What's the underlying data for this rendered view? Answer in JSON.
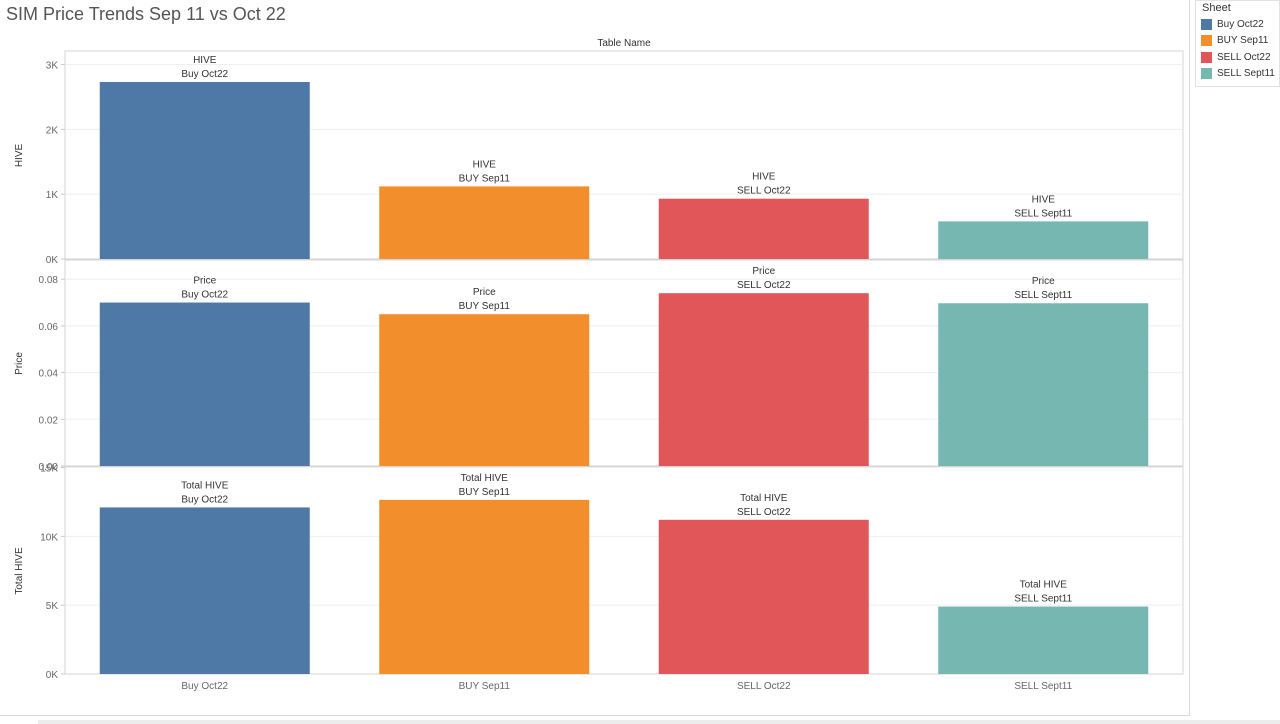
{
  "title": "SIM Price Trends Sep 11 vs Oct 22",
  "legend": {
    "title": "Sheet",
    "items": [
      {
        "label": "Buy Oct22",
        "color": "#4e79a7"
      },
      {
        "label": "BUY Sep11",
        "color": "#f28e2b"
      },
      {
        "label": "SELL Oct22",
        "color": "#e15759"
      },
      {
        "label": "SELL Sept11",
        "color": "#76b7b2"
      }
    ]
  },
  "chart_data": {
    "type": "bar",
    "header": "Table Name",
    "categories": [
      "Buy Oct22",
      "BUY Sep11",
      "SELL Oct22",
      "SELL Sept11"
    ],
    "colors": [
      "#4e79a7",
      "#f28e2b",
      "#e15759",
      "#76b7b2"
    ],
    "grid": true,
    "panels": [
      {
        "measure": "HIVE",
        "ylabel": "HIVE",
        "ylim": [
          0,
          3200
        ],
        "ticks": [
          {
            "value": 0,
            "label": "0K"
          },
          {
            "value": 1000,
            "label": "1K"
          },
          {
            "value": 2000,
            "label": "2K"
          },
          {
            "value": 3000,
            "label": "3K"
          }
        ],
        "values": [
          2730,
          1120,
          930,
          580
        ]
      },
      {
        "measure": "Price",
        "ylabel": "Price",
        "ylim": [
          0,
          0.088
        ],
        "ticks": [
          {
            "value": 0,
            "label": "0.00"
          },
          {
            "value": 0.02,
            "label": "0.02"
          },
          {
            "value": 0.04,
            "label": "0.04"
          },
          {
            "value": 0.06,
            "label": "0.06"
          },
          {
            "value": 0.08,
            "label": "0.08"
          }
        ],
        "values": [
          0.07,
          0.065,
          0.074,
          0.0697
        ]
      },
      {
        "measure": "Total HIVE",
        "ylabel": "Total HIVE",
        "ylim": [
          0,
          15000
        ],
        "ticks": [
          {
            "value": 0,
            "label": "0K"
          },
          {
            "value": 5000,
            "label": "5K"
          },
          {
            "value": 10000,
            "label": "10K"
          },
          {
            "value": 15000,
            "label": "15K"
          }
        ],
        "values": [
          12100,
          12650,
          11200,
          4900
        ]
      }
    ]
  }
}
